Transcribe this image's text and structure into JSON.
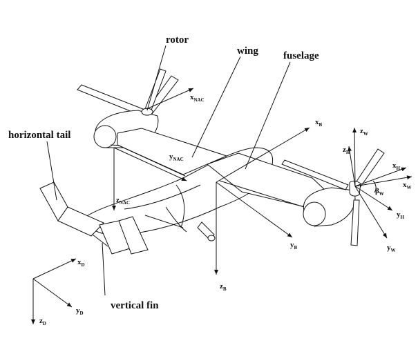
{
  "labels": {
    "rotor": "rotor",
    "wing": "wing",
    "fuselage": "fuselage",
    "horizontal_tail": "horizontal tail",
    "vertical_fin": "vertical fin"
  },
  "axes": {
    "x_nac": {
      "main": "x",
      "sub": "NAC"
    },
    "y_nac": {
      "main": "y",
      "sub": "NAC"
    },
    "z_nac": {
      "main": "z",
      "sub": "NAC"
    },
    "x_b": {
      "main": "x",
      "sub": "B"
    },
    "y_b": {
      "main": "y",
      "sub": "B"
    },
    "z_b": {
      "main": "z",
      "sub": "B"
    },
    "z_w": {
      "main": "z",
      "sub": "W"
    },
    "x_w": {
      "main": "x",
      "sub": "W"
    },
    "y_w": {
      "main": "y",
      "sub": "W"
    },
    "z_h": {
      "main": "z",
      "sub": "H"
    },
    "x_h": {
      "main": "x",
      "sub": "H"
    },
    "y_h": {
      "main": "y",
      "sub": "H"
    },
    "beta_w": {
      "main": "β",
      "sub": "W"
    },
    "x_d": {
      "main": "x",
      "sub": "D"
    },
    "y_d": {
      "main": "y",
      "sub": "D"
    },
    "z_d": {
      "main": "z",
      "sub": "D"
    }
  }
}
